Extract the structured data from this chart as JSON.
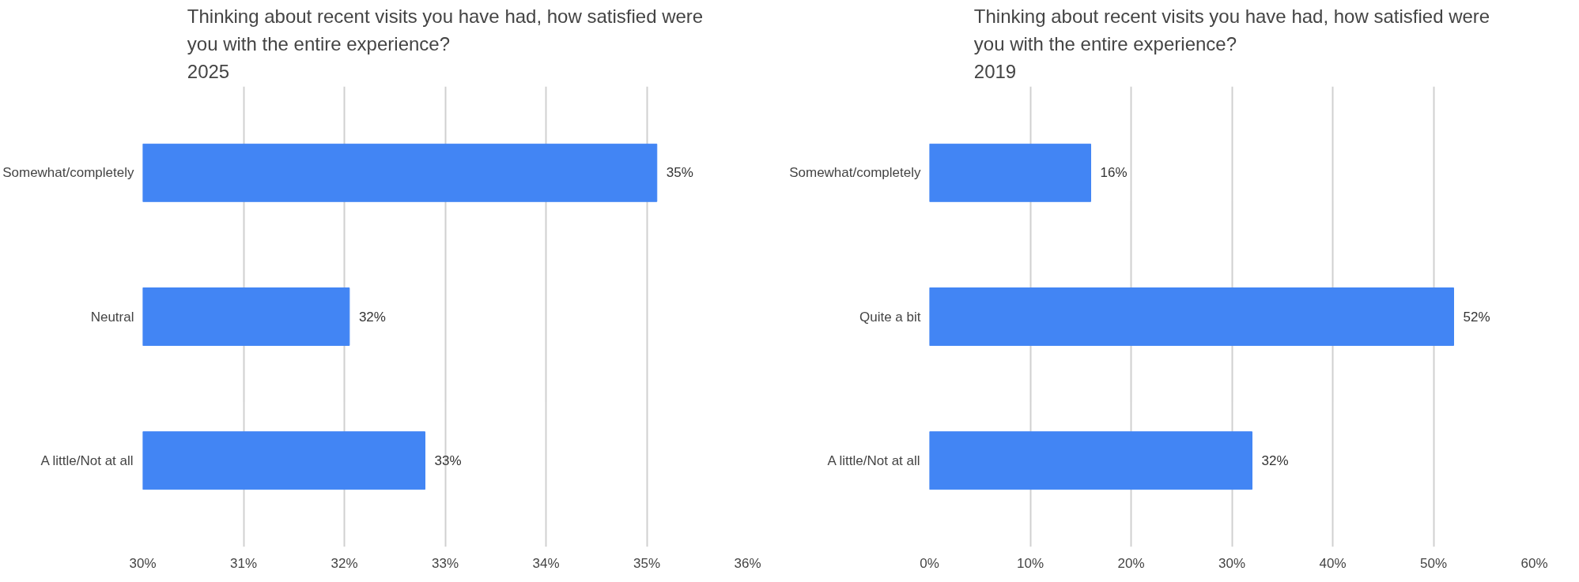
{
  "chart_data": [
    {
      "type": "bar",
      "orientation": "horizontal",
      "title": "Thinking about recent visits you have had, how satisfied were you with the entire experience?\n2025",
      "categories": [
        "Somewhat/completely",
        "Neutral",
        "A little/Not at all"
      ],
      "values": [
        35.1,
        32.05,
        32.8
      ],
      "value_labels": [
        "35%",
        "32%",
        "33%"
      ],
      "color": "#4285f4",
      "xlim": [
        30,
        36
      ],
      "xticks": [
        {
          "value": 30,
          "label": "30%"
        },
        {
          "value": 31,
          "label": "31%"
        },
        {
          "value": 32,
          "label": "32%"
        },
        {
          "value": 33,
          "label": "33%"
        },
        {
          "value": 34,
          "label": "34%"
        },
        {
          "value": 35,
          "label": "35%"
        },
        {
          "value": 36,
          "label": "36%"
        }
      ],
      "grid": "x"
    },
    {
      "type": "bar",
      "orientation": "horizontal",
      "title": "Thinking about recent visits you have had, how satisfied were you with the entire experience?\n2019",
      "categories": [
        "Somewhat/completely",
        "Quite a bit",
        "A little/Not at all"
      ],
      "values": [
        16,
        52,
        32
      ],
      "value_labels": [
        "16%",
        "52%",
        "32%"
      ],
      "color": "#4285f4",
      "xlim": [
        0,
        60
      ],
      "xticks": [
        {
          "value": 0,
          "label": "0%"
        },
        {
          "value": 10,
          "label": "10%"
        },
        {
          "value": 20,
          "label": "20%"
        },
        {
          "value": 30,
          "label": "30%"
        },
        {
          "value": 40,
          "label": "40%"
        },
        {
          "value": 50,
          "label": "50%"
        },
        {
          "value": 60,
          "label": "60%"
        }
      ],
      "grid": "x"
    }
  ]
}
